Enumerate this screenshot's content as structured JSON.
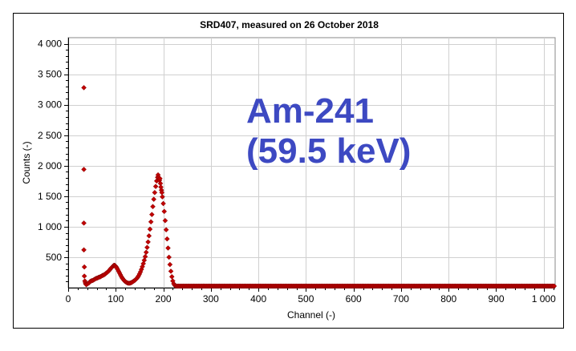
{
  "chart_data": {
    "type": "scatter",
    "title": "SRD407, measured on 26 October 2018",
    "xlabel": "Channel (-)",
    "ylabel": "Counts (-)",
    "xlim": [
      0,
      1024
    ],
    "ylim": [
      0,
      4100
    ],
    "xticks": [
      0,
      100,
      200,
      300,
      400,
      500,
      600,
      700,
      800,
      900,
      1000
    ],
    "xtick_labels": [
      "0",
      "100",
      "200",
      "300",
      "400",
      "500",
      "600",
      "700",
      "800",
      "900",
      "1 000"
    ],
    "yticks": [
      500,
      1000,
      1500,
      2000,
      2500,
      3000,
      3500,
      4000
    ],
    "ytick_labels": [
      "500",
      "1 000",
      "1 500",
      "2 000",
      "2 500",
      "3 000",
      "3 500",
      "4 000"
    ],
    "grid": true,
    "legend": "none",
    "annotation": [
      "Am-241",
      "(59.5 keV)"
    ],
    "colors": {
      "marker": "#c00000",
      "marker_edge": "#800000",
      "annotation": "#3d49c2",
      "grid": "#d0d0d0"
    },
    "series": [
      {
        "points": [
          [
            33,
            3280
          ],
          [
            33,
            1940
          ],
          [
            33,
            1060
          ],
          [
            33,
            620
          ],
          [
            34,
            340
          ],
          [
            34,
            190
          ],
          [
            35,
            110
          ],
          [
            36,
            80
          ],
          [
            37,
            60
          ],
          [
            38,
            50
          ],
          [
            40,
            60
          ],
          [
            42,
            70
          ],
          [
            44,
            80
          ],
          [
            46,
            100
          ],
          [
            48,
            110
          ],
          [
            50,
            115
          ],
          [
            52,
            120
          ],
          [
            54,
            130
          ],
          [
            56,
            140
          ],
          [
            58,
            150
          ],
          [
            60,
            155
          ],
          [
            62,
            160
          ],
          [
            64,
            170
          ],
          [
            66,
            175
          ],
          [
            68,
            180
          ],
          [
            70,
            190
          ],
          [
            72,
            200
          ],
          [
            74,
            205
          ],
          [
            76,
            215
          ],
          [
            78,
            225
          ],
          [
            80,
            240
          ],
          [
            82,
            250
          ],
          [
            84,
            265
          ],
          [
            86,
            280
          ],
          [
            88,
            300
          ],
          [
            90,
            320
          ],
          [
            92,
            335
          ],
          [
            94,
            350
          ],
          [
            95,
            360
          ],
          [
            96,
            365
          ],
          [
            97,
            368
          ],
          [
            98,
            365
          ],
          [
            99,
            358
          ],
          [
            100,
            350
          ],
          [
            101,
            338
          ],
          [
            102,
            325
          ],
          [
            104,
            300
          ],
          [
            106,
            270
          ],
          [
            108,
            240
          ],
          [
            110,
            210
          ],
          [
            112,
            180
          ],
          [
            114,
            155
          ],
          [
            116,
            135
          ],
          [
            118,
            115
          ],
          [
            120,
            100
          ],
          [
            122,
            90
          ],
          [
            124,
            80
          ],
          [
            126,
            75
          ],
          [
            128,
            72
          ],
          [
            130,
            75
          ],
          [
            132,
            80
          ],
          [
            134,
            88
          ],
          [
            136,
            98
          ],
          [
            138,
            110
          ],
          [
            140,
            120
          ],
          [
            142,
            135
          ],
          [
            144,
            150
          ],
          [
            146,
            170
          ],
          [
            148,
            195
          ],
          [
            150,
            225
          ],
          [
            152,
            260
          ],
          [
            154,
            300
          ],
          [
            156,
            345
          ],
          [
            158,
            395
          ],
          [
            160,
            450
          ],
          [
            162,
            510
          ],
          [
            164,
            580
          ],
          [
            166,
            660
          ],
          [
            168,
            750
          ],
          [
            170,
            850
          ],
          [
            172,
            960
          ],
          [
            174,
            1080
          ],
          [
            176,
            1200
          ],
          [
            178,
            1330
          ],
          [
            180,
            1450
          ],
          [
            182,
            1560
          ],
          [
            184,
            1660
          ],
          [
            186,
            1750
          ],
          [
            188,
            1810
          ],
          [
            189,
            1850
          ],
          [
            190,
            1810
          ],
          [
            191,
            1770
          ],
          [
            192,
            1760
          ],
          [
            193,
            1790
          ],
          [
            194,
            1710
          ],
          [
            195,
            1650
          ],
          [
            196,
            1600
          ],
          [
            197,
            1560
          ],
          [
            198,
            1490
          ],
          [
            200,
            1380
          ],
          [
            202,
            1250
          ],
          [
            204,
            1100
          ],
          [
            206,
            950
          ],
          [
            208,
            800
          ],
          [
            210,
            650
          ],
          [
            212,
            500
          ],
          [
            214,
            380
          ],
          [
            216,
            270
          ],
          [
            218,
            180
          ],
          [
            220,
            110
          ],
          [
            222,
            65
          ],
          [
            224,
            40
          ],
          [
            226,
            28
          ],
          [
            228,
            22
          ],
          [
            230,
            20
          ],
          [
            232,
            18
          ],
          [
            234,
            17
          ],
          [
            236,
            16
          ],
          [
            238,
            16
          ],
          [
            240,
            15
          ]
        ],
        "tail": {
          "x_start": 242,
          "x_end": 1022,
          "y_start": 15,
          "y_end": 5
        }
      }
    ]
  }
}
